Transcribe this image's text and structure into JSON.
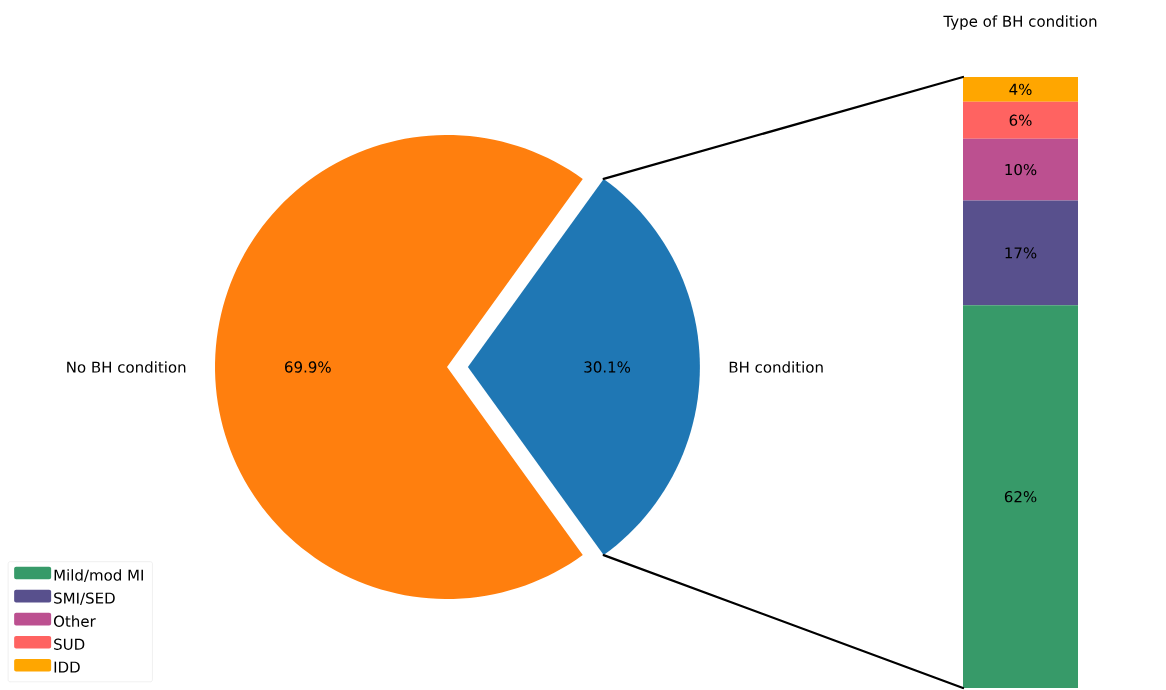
{
  "chart_data": [
    {
      "type": "pie",
      "categories": [
        "No BH condition",
        "BH condition"
      ],
      "values": [
        69.9,
        30.1
      ],
      "colors": [
        "#ff7f0e",
        "#1f77b4"
      ],
      "value_labels": [
        "69.9%",
        "30.1%"
      ]
    },
    {
      "type": "bar",
      "title": "Type of BH condition",
      "categories": [
        null
      ],
      "stacked": true,
      "legend": "bottom left",
      "series": [
        {
          "name": "Mild/mod MI",
          "color": "#379a69",
          "values": [
            62
          ],
          "value_labels": [
            "62%"
          ]
        },
        {
          "name": "SMI/SED",
          "color": "#58508d",
          "values": [
            17
          ],
          "value_labels": [
            "17%"
          ]
        },
        {
          "name": "Other",
          "color": "#bc5090",
          "values": [
            10
          ],
          "value_labels": [
            "10%"
          ]
        },
        {
          "name": "SUD",
          "color": "#ff6361",
          "values": [
            6
          ],
          "value_labels": [
            "6%"
          ]
        },
        {
          "name": "IDD",
          "color": "#ffa600",
          "values": [
            4
          ],
          "value_labels": [
            "4%"
          ]
        }
      ]
    }
  ]
}
